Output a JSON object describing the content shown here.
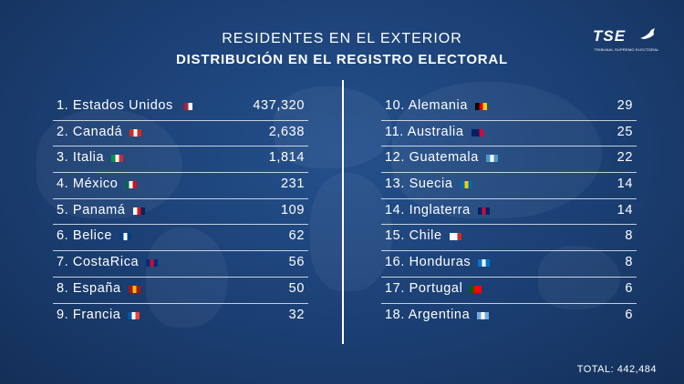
{
  "header": {
    "title_line1": "RESIDENTES EN EL EXTERIOR",
    "title_line2": "DISTRIBUCIÓN EN EL REGISTRO ELECTORAL"
  },
  "logo": {
    "text": "TSE",
    "subtitle": "TRIBUNAL SUPREMO ELECTORAL"
  },
  "left_list": [
    {
      "label": "1. Estados Unidos",
      "value": "437,320",
      "flag": [
        "#3c3b6e",
        "#b22234",
        "#ffffff"
      ]
    },
    {
      "label": "2. Canadá",
      "value": "2,638",
      "flag": [
        "#d52b1e",
        "#ffffff",
        "#d52b1e"
      ]
    },
    {
      "label": "3. Italia",
      "value": "1,814",
      "flag": [
        "#009246",
        "#ffffff",
        "#ce2b37"
      ]
    },
    {
      "label": "4. México",
      "value": "231",
      "flag": [
        "#006847",
        "#ffffff",
        "#ce1126"
      ]
    },
    {
      "label": "5. Panamá",
      "value": "109",
      "flag": [
        "#ffffff",
        "#da121a",
        "#072357"
      ]
    },
    {
      "label": "6. Belice",
      "value": "62",
      "flag": [
        "#003f87",
        "#ffffff",
        "#003f87"
      ]
    },
    {
      "label": "7. CostaRica",
      "value": "56",
      "flag": [
        "#002b7f",
        "#ce1126",
        "#002b7f"
      ]
    },
    {
      "label": "8. España",
      "value": "50",
      "flag": [
        "#aa151b",
        "#f1bf00",
        "#aa151b"
      ]
    },
    {
      "label": "9. Francia",
      "value": "32",
      "flag": [
        "#0055a4",
        "#ffffff",
        "#ef4135"
      ]
    }
  ],
  "right_list": [
    {
      "label": "10. Alemania",
      "value": "29",
      "flag": [
        "#000000",
        "#dd0000",
        "#ffce00"
      ]
    },
    {
      "label": "11. Australia",
      "value": "25",
      "flag": [
        "#012169",
        "#012169",
        "#e4002b"
      ]
    },
    {
      "label": "12. Guatemala",
      "value": "22",
      "flag": [
        "#4997d0",
        "#ffffff",
        "#4997d0"
      ]
    },
    {
      "label": "13. Suecia",
      "value": "14",
      "flag": [
        "#006aa7",
        "#fecc00",
        "#006aa7"
      ]
    },
    {
      "label": "14. Inglaterra",
      "value": "14",
      "flag": [
        "#012169",
        "#c8102e",
        "#012169"
      ]
    },
    {
      "label": "15. Chile",
      "value": "8",
      "flag": [
        "#ffffff",
        "#ffffff",
        "#d52b1e"
      ]
    },
    {
      "label": "16. Honduras",
      "value": "8",
      "flag": [
        "#0073cf",
        "#ffffff",
        "#0073cf"
      ]
    },
    {
      "label": "17. Portugal",
      "value": "6",
      "flag": [
        "#006600",
        "#ff0000",
        "#ff0000"
      ]
    },
    {
      "label": "18. Argentina",
      "value": "6",
      "flag": [
        "#74acdf",
        "#ffffff",
        "#74acdf"
      ]
    }
  ],
  "total": "TOTAL: 442,484"
}
